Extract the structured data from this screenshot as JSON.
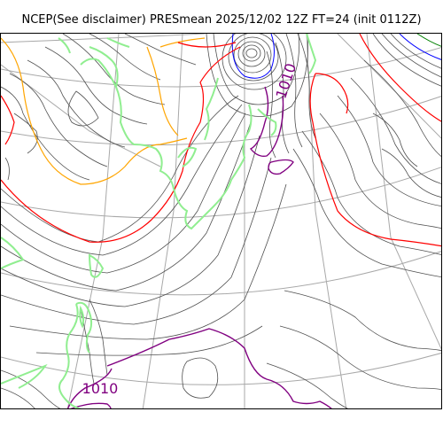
{
  "title": "NCEP(See disclaimer) PRESmean 2025/12/02 12Z FT=24 (init 0112Z)",
  "contour_labels": [
    {
      "id": "label-1010-north",
      "text": "1010"
    },
    {
      "id": "label-1010-south",
      "text": "1010"
    }
  ],
  "colors": {
    "isobar": "#505050",
    "graticule": "#a8a8a8",
    "coastline": "#90ee90",
    "isobar_1010": "#800080",
    "isobar_red": "#ff0000",
    "isobar_orange": "#ffa500",
    "isobar_blue": "#0000ff",
    "isobar_green": "#008000"
  }
}
